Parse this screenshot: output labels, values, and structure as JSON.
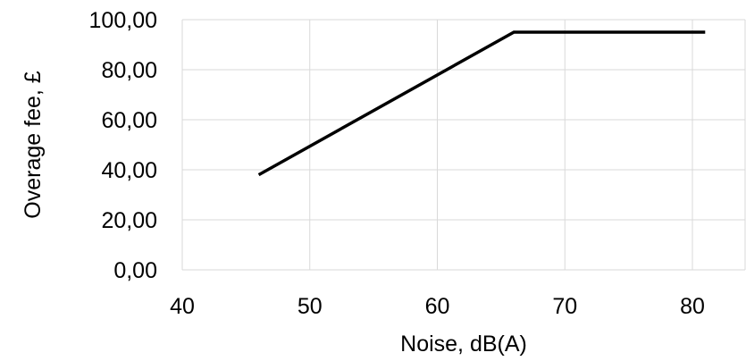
{
  "chart_data": {
    "type": "line",
    "xlabel": "Noise, dB(A)",
    "ylabel": "Overage fee, £",
    "xlim": [
      40,
      80
    ],
    "ylim": [
      0,
      100
    ],
    "x_ticks": [
      40,
      50,
      60,
      70,
      80
    ],
    "x_tick_labels": [
      "40",
      "50",
      "60",
      "70",
      "80"
    ],
    "y_ticks": [
      0,
      20,
      40,
      60,
      80,
      100
    ],
    "y_tick_labels": [
      "0,00",
      "20,00",
      "40,00",
      "60,00",
      "80,00",
      "100,00"
    ],
    "grid": true,
    "legend": "none",
    "series": [
      {
        "color": "#000000",
        "points": [
          {
            "x": 46,
            "y": 38
          },
          {
            "x": 66,
            "y": 95
          },
          {
            "x": 81,
            "y": 95
          }
        ]
      }
    ]
  }
}
